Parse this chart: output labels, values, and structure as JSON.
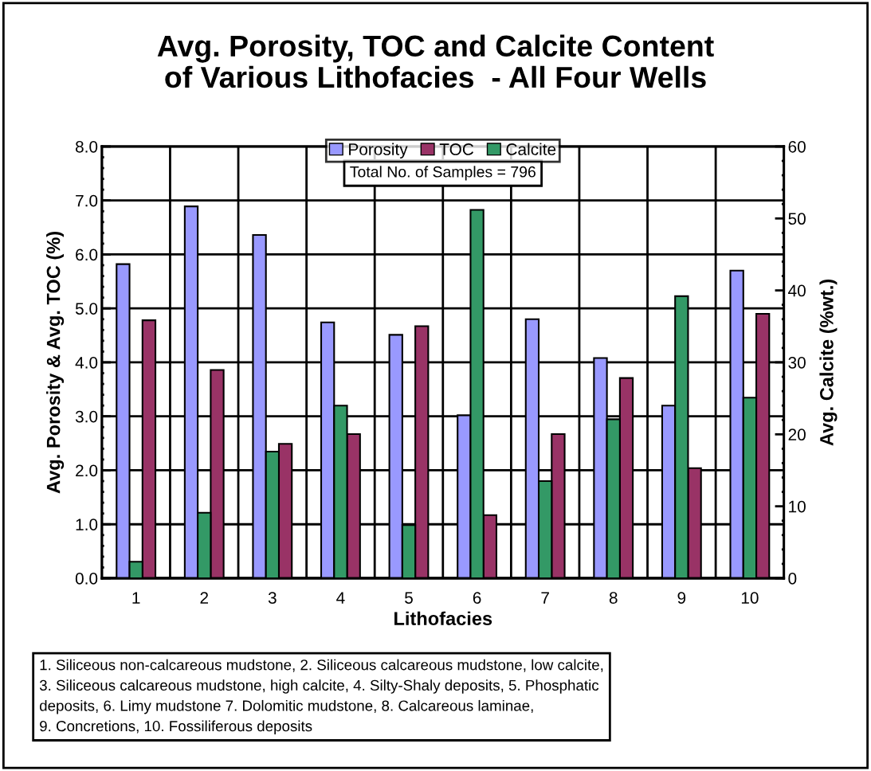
{
  "chart_data": {
    "type": "bar",
    "title": "Avg. Porosity, TOC and Calcite Content\nof Various Lithofacies  - All Four Wells",
    "xlabel": "Lithofacies",
    "ylabel": "Avg. Porosity & Avg. TOC (%)",
    "y2label": "Avg. Calcite (%wt.)",
    "categories": [
      "1",
      "2",
      "3",
      "4",
      "5",
      "6",
      "7",
      "8",
      "9",
      "10"
    ],
    "series": [
      {
        "name": "Porosity",
        "color": "#9999ff",
        "values": [
          5.82,
          6.89,
          6.36,
          4.74,
          4.51,
          3.02,
          4.8,
          4.08,
          3.2,
          5.7
        ]
      },
      {
        "name": "Calcite",
        "color": "#339966",
        "axis": "y2",
        "values": [
          2.3,
          9.1,
          17.6,
          24.0,
          7.4,
          51.2,
          13.5,
          22.1,
          39.2,
          25.1
        ]
      },
      {
        "name": "TOC",
        "color": "#993366",
        "values": [
          4.78,
          3.86,
          2.49,
          2.67,
          4.67,
          1.17,
          2.67,
          3.71,
          2.04,
          4.9
        ]
      }
    ],
    "ylim": [
      0,
      8
    ],
    "yticks": [
      {
        "value": 0,
        "label": "0.0"
      },
      {
        "value": 1,
        "label": "1.0"
      },
      {
        "value": 2,
        "label": "2.0"
      },
      {
        "value": 3,
        "label": "3.0"
      },
      {
        "value": 4,
        "label": "4.0"
      },
      {
        "value": 5,
        "label": "5.0"
      },
      {
        "value": 6,
        "label": "6.0"
      },
      {
        "value": 7,
        "label": "7.0"
      },
      {
        "value": 8,
        "label": "8.0"
      }
    ],
    "y2lim": [
      0,
      60
    ],
    "y2ticks": [
      0,
      10,
      20,
      30,
      40,
      50,
      60
    ],
    "grid": true,
    "legend": "top",
    "annotations": [
      "Total No. of Samples = 796",
      "1. Siliceous non-calcareous mudstone, 2. Siliceous calcareous mudstone, low calcite,\n3. Siliceous calcareous mudstone, high calcite, 4. Silty-Shaly deposits, 5. Phosphatic\ndeposits, 6. Limy mudstone 7. Dolomitic mudstone, 8. Calcareous laminae,\n9. Concretions, 10. Fossiliferous deposits"
    ]
  }
}
